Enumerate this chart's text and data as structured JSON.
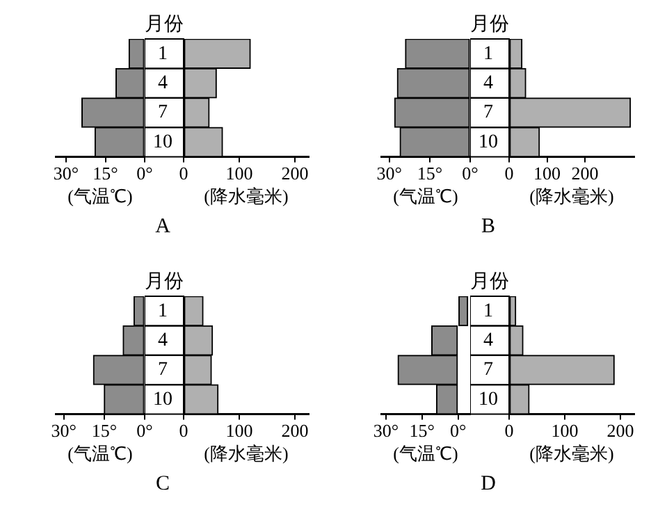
{
  "chart_data": [
    {
      "type": "bar",
      "orientation": "horizontal",
      "title": "A",
      "xlabel": "(气温℃)",
      "categories": [
        "1",
        "4",
        "7",
        "10"
      ],
      "values": [
        6,
        11,
        24,
        19
      ],
      "color": "#8c8c8c",
      "xlim": [
        34,
        0
      ],
      "xticks": [
        {
          "value": 30,
          "label": "30°"
        },
        {
          "value": 15,
          "label": "15°"
        },
        {
          "value": 0,
          "label": "0°"
        }
      ],
      "tick_labels": "x"
    },
    {
      "type": "bar",
      "orientation": "horizontal",
      "ylabel": "月份",
      "xlabel": "(降水毫米)",
      "categories": [
        "1",
        "4",
        "7",
        "10"
      ],
      "values": [
        120,
        59,
        46,
        70
      ],
      "color": "#b0b0b0",
      "xlim": [
        0,
        225
      ],
      "xticks": [
        0,
        100,
        200
      ]
    },
    {
      "type": "bar",
      "orientation": "horizontal",
      "title": "B",
      "xlabel": "(气温℃)",
      "categories": [
        "1",
        "4",
        "7",
        "10"
      ],
      "values": [
        24,
        27,
        28,
        26
      ],
      "color": "#8c8c8c",
      "xlim": [
        33,
        0
      ],
      "xticks": [
        {
          "value": 30,
          "label": "30°"
        },
        {
          "value": 15,
          "label": "15°"
        },
        {
          "value": 0,
          "label": "0°"
        }
      ],
      "tick_labels": "x"
    },
    {
      "type": "bar",
      "orientation": "horizontal",
      "ylabel": "月份",
      "xlabel": "(降水毫米)",
      "categories": [
        "1",
        "4",
        "7",
        "10"
      ],
      "values": [
        34,
        44,
        320,
        80
      ],
      "color": "#b0b0b0",
      "xlim": [
        0,
        330
      ],
      "xticks": [
        0,
        100,
        200
      ]
    },
    {
      "type": "bar",
      "orientation": "horizontal",
      "title": "C",
      "xlabel": "(气温℃)",
      "categories": [
        "1",
        "4",
        "7",
        "10"
      ],
      "values": [
        4,
        8,
        19,
        15
      ],
      "color": "#8c8c8c",
      "xlim": [
        33,
        0
      ],
      "xticks": [
        {
          "value": 30,
          "label": "30°"
        },
        {
          "value": 15,
          "label": "15°"
        },
        {
          "value": 0,
          "label": "0°"
        }
      ],
      "tick_labels": "x"
    },
    {
      "type": "bar",
      "orientation": "horizontal",
      "ylabel": "月份",
      "xlabel": "(降水毫米)",
      "categories": [
        "1",
        "4",
        "7",
        "10"
      ],
      "values": [
        35,
        52,
        50,
        62
      ],
      "color": "#b0b0b0",
      "xlim": [
        0,
        225
      ],
      "xticks": [
        0,
        100,
        200
      ]
    },
    {
      "type": "bar",
      "orientation": "horizontal",
      "title": "D",
      "xlabel": "(气温℃)",
      "categories": [
        "1",
        "4",
        "7",
        "10"
      ],
      "values": [
        -4,
        11,
        25,
        9
      ],
      "color": "#8c8c8c",
      "xlim": [
        32,
        -5
      ],
      "xticks": [
        {
          "value": 30,
          "label": "30°"
        },
        {
          "value": 15,
          "label": "15°"
        },
        {
          "value": 0,
          "label": "0°"
        }
      ],
      "tick_labels": "x"
    },
    {
      "type": "bar",
      "orientation": "horizontal",
      "ylabel": "月份",
      "xlabel": "(降水毫米)",
      "categories": [
        "1",
        "4",
        "7",
        "10"
      ],
      "values": [
        12,
        25,
        189,
        36
      ],
      "color": "#b0b0b0",
      "xlim": [
        0,
        225
      ],
      "xticks": [
        0,
        100,
        200
      ]
    }
  ]
}
